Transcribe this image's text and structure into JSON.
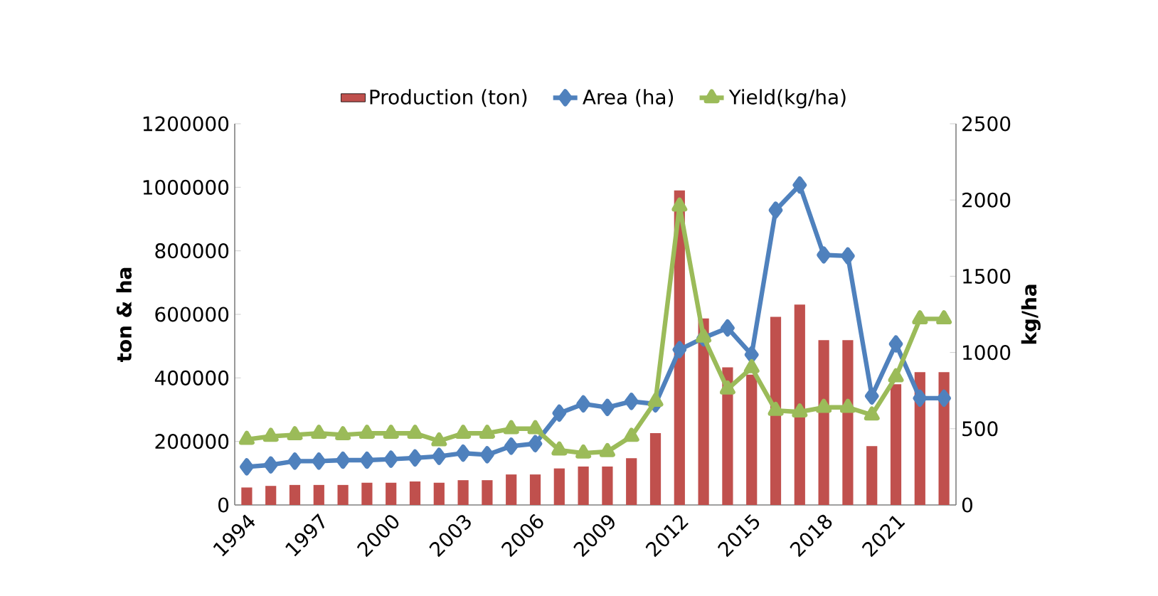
{
  "chart_data": {
    "type": "bar",
    "categories": [
      "1994",
      null,
      null,
      "1997",
      null,
      null,
      "2000",
      null,
      null,
      "2003",
      null,
      null,
      "2006",
      null,
      null,
      "2009",
      null,
      null,
      "2012",
      null,
      null,
      "2015",
      null,
      null,
      "2018",
      null,
      null,
      "2021",
      null,
      null
    ],
    "ylabel": "ton & ha",
    "y2label": "kg/ha",
    "ylim": [
      0,
      1200000
    ],
    "yticks": [
      0,
      200000,
      400000,
      600000,
      800000,
      1000000,
      1200000
    ],
    "y2lim": [
      0,
      2500
    ],
    "y2ticks": [
      0,
      500,
      1000,
      1500,
      2000,
      2500
    ],
    "grid": false,
    "legend": "top",
    "series": [
      {
        "name": "Production (ton)",
        "color": "#c0504d",
        "values": [
          55000,
          60000,
          63000,
          63000,
          63000,
          70000,
          70000,
          74000,
          70000,
          78000,
          78000,
          96000,
          96000,
          115000,
          121000,
          121000,
          147000,
          226000,
          990000,
          587000,
          433000,
          410000,
          592000,
          631000,
          519000,
          519000,
          185000,
          380000,
          418000,
          418000
        ]
      },
      {
        "name": "Area (ha)",
        "type": "line",
        "marker": "diamond",
        "color": "#4f81bd",
        "values": [
          120000,
          126000,
          138000,
          138000,
          141000,
          141000,
          144000,
          148000,
          153000,
          163000,
          158000,
          185000,
          193000,
          289000,
          318000,
          307000,
          326000,
          318000,
          489000,
          526000,
          557000,
          473000,
          928000,
          1007000,
          787000,
          784000,
          343000,
          507000,
          336000,
          336000
        ]
      },
      {
        "name": "Yield(kg/ha)",
        "type": "line",
        "marker": "triangle",
        "axis": "y2",
        "color": "#9bbb59",
        "values": [
          430,
          450,
          460,
          470,
          460,
          470,
          470,
          470,
          420,
          470,
          470,
          500,
          500,
          360,
          340,
          350,
          450,
          680,
          1960,
          1100,
          760,
          900,
          620,
          610,
          640,
          640,
          590,
          840,
          1220,
          1220
        ]
      }
    ]
  }
}
